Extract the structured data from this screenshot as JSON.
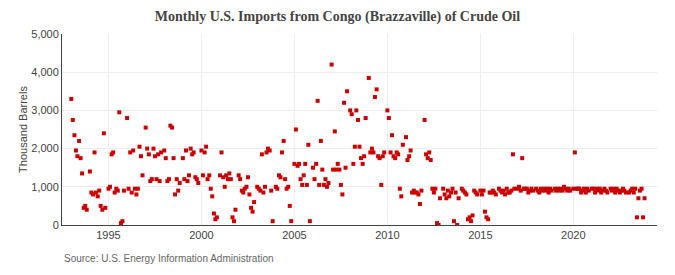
{
  "chart_data": {
    "type": "scatter",
    "title": "Monthly U.S. Imports from Congo (Brazzaville) of Crude Oil",
    "ylabel": "Thousand Barrels",
    "annotations": [
      "Source: U.S. Energy Information Administration"
    ],
    "color": "#cc0000",
    "marker": "square",
    "grid": true,
    "xlim": [
      1992.5,
      2024.5
    ],
    "xticks": [
      1995,
      2000,
      2005,
      2010,
      2015,
      2020
    ],
    "ylim": [
      0,
      5000
    ],
    "yticks": [
      0,
      {
        "value": 1000,
        "label": "1,000"
      },
      {
        "value": 2000,
        "label": "2,000"
      },
      {
        "value": 3000,
        "label": "3,000"
      },
      {
        "value": 4000,
        "label": "4,000"
      },
      {
        "value": 5000,
        "label": "5,000"
      }
    ],
    "x": [
      1993.0,
      1993.08,
      1993.17,
      1993.25,
      1993.33,
      1993.42,
      1993.5,
      1993.58,
      1993.67,
      1993.75,
      1993.83,
      1994.0,
      1994.08,
      1994.17,
      1994.25,
      1994.33,
      1994.42,
      1994.5,
      1994.58,
      1994.67,
      1994.75,
      1994.83,
      1995.0,
      1995.08,
      1995.17,
      1995.25,
      1995.33,
      1995.42,
      1995.5,
      1995.58,
      1995.67,
      1995.75,
      1995.83,
      1996.0,
      1996.08,
      1996.17,
      1996.25,
      1996.33,
      1996.42,
      1996.5,
      1996.58,
      1996.67,
      1996.75,
      1996.83,
      1997.0,
      1997.08,
      1997.17,
      1997.25,
      1997.33,
      1997.42,
      1997.5,
      1997.58,
      1997.67,
      1997.75,
      1997.83,
      1998.0,
      1998.08,
      1998.17,
      1998.25,
      1998.33,
      1998.42,
      1998.5,
      1998.58,
      1998.67,
      1998.75,
      1998.83,
      1999.0,
      1999.08,
      1999.17,
      1999.25,
      1999.33,
      1999.42,
      1999.5,
      1999.58,
      1999.67,
      1999.75,
      1999.83,
      2000.0,
      2000.08,
      2000.17,
      2000.25,
      2000.33,
      2000.42,
      2000.5,
      2000.58,
      2000.67,
      2000.75,
      2000.83,
      2001.0,
      2001.08,
      2001.17,
      2001.25,
      2001.33,
      2001.42,
      2001.5,
      2001.58,
      2001.67,
      2001.75,
      2001.83,
      2002.0,
      2002.08,
      2002.17,
      2002.25,
      2002.33,
      2002.42,
      2002.5,
      2002.58,
      2002.67,
      2002.75,
      2002.83,
      2003.0,
      2003.08,
      2003.17,
      2003.25,
      2003.33,
      2003.42,
      2003.5,
      2003.58,
      2003.67,
      2003.75,
      2003.83,
      2004.0,
      2004.08,
      2004.17,
      2004.25,
      2004.33,
      2004.42,
      2004.5,
      2004.58,
      2004.67,
      2004.75,
      2004.83,
      2005.0,
      2005.08,
      2005.17,
      2005.25,
      2005.33,
      2005.42,
      2005.5,
      2005.58,
      2005.67,
      2005.75,
      2005.83,
      2006.0,
      2006.08,
      2006.17,
      2006.25,
      2006.33,
      2006.42,
      2006.5,
      2006.58,
      2006.67,
      2006.75,
      2006.83,
      2007.0,
      2007.08,
      2007.17,
      2007.25,
      2007.33,
      2007.42,
      2007.5,
      2007.58,
      2007.67,
      2007.75,
      2007.83,
      2008.0,
      2008.08,
      2008.17,
      2008.25,
      2008.33,
      2008.42,
      2008.5,
      2008.58,
      2008.67,
      2008.75,
      2008.83,
      2009.0,
      2009.08,
      2009.17,
      2009.25,
      2009.33,
      2009.42,
      2009.5,
      2009.58,
      2009.67,
      2009.75,
      2009.83,
      2010.0,
      2010.08,
      2010.17,
      2010.25,
      2010.33,
      2010.42,
      2010.5,
      2010.58,
      2010.67,
      2010.75,
      2010.83,
      2011.0,
      2011.08,
      2011.17,
      2011.25,
      2011.33,
      2011.42,
      2011.5,
      2011.58,
      2011.67,
      2011.75,
      2011.83,
      2012.0,
      2012.08,
      2012.17,
      2012.25,
      2012.33,
      2012.42,
      2012.5,
      2012.58,
      2012.67,
      2012.75,
      2012.83,
      2013.0,
      2013.08,
      2013.17,
      2013.25,
      2013.33,
      2013.42,
      2013.5,
      2013.58,
      2013.67,
      2013.75,
      2013.83,
      2014.0,
      2014.08,
      2014.17,
      2014.25,
      2014.33,
      2014.42,
      2014.5,
      2014.58,
      2014.67,
      2014.75,
      2014.83,
      2015.0,
      2015.08,
      2015.17,
      2015.25,
      2015.33,
      2015.42,
      2015.5,
      2015.58,
      2015.67,
      2015.75,
      2015.83,
      2016.0,
      2016.08,
      2016.17,
      2016.25,
      2016.33,
      2016.42,
      2016.5,
      2016.58,
      2016.67,
      2016.75,
      2016.83,
      2017.0,
      2017.08,
      2017.17,
      2017.25,
      2017.33,
      2017.42,
      2017.5,
      2017.58,
      2017.67,
      2017.75,
      2017.83,
      2018.0,
      2018.08,
      2018.17,
      2018.25,
      2018.33,
      2018.42,
      2018.5,
      2018.58,
      2018.67,
      2018.75,
      2018.83,
      2019.0,
      2019.08,
      2019.17,
      2019.25,
      2019.33,
      2019.42,
      2019.5,
      2019.58,
      2019.67,
      2019.75,
      2019.83,
      2020.0,
      2020.08,
      2020.17,
      2020.25,
      2020.33,
      2020.42,
      2020.5,
      2020.58,
      2020.67,
      2020.75,
      2020.83,
      2021.0,
      2021.08,
      2021.17,
      2021.25,
      2021.33,
      2021.42,
      2021.5,
      2021.58,
      2021.67,
      2021.75,
      2021.83,
      2022.0,
      2022.08,
      2022.17,
      2022.25,
      2022.33,
      2022.42,
      2022.5,
      2022.58,
      2022.67,
      2022.75,
      2022.83,
      2023.0,
      2023.08,
      2023.17,
      2023.25,
      2023.33,
      2023.42,
      2023.5,
      2023.58,
      2023.67,
      2023.75,
      2023.83
    ],
    "values": [
      3300,
      2750,
      2350,
      1950,
      1800,
      2200,
      1750,
      1350,
      450,
      500,
      400,
      1400,
      850,
      800,
      1900,
      850,
      750,
      900,
      500,
      400,
      2400,
      450,
      950,
      1000,
      1850,
      1900,
      850,
      950,
      900,
      2950,
      50,
      100,
      900,
      2800,
      950,
      1900,
      850,
      1950,
      950,
      800,
      950,
      2050,
      1800,
      1300,
      2550,
      2000,
      1850,
      1150,
      1200,
      2000,
      1800,
      1200,
      1850,
      1150,
      1900,
      1950,
      1750,
      1150,
      1200,
      2600,
      2550,
      1750,
      800,
      1200,
      900,
      1100,
      1750,
      1200,
      1950,
      1150,
      1300,
      2000,
      1850,
      1900,
      1250,
      1200,
      1100,
      1950,
      1300,
      1900,
      2050,
      1200,
      1300,
      950,
      750,
      300,
      150,
      200,
      1300,
      1900,
      1250,
      1000,
      1300,
      1200,
      1350,
      1200,
      200,
      100,
      400,
      1300,
      1200,
      900,
      850,
      950,
      1000,
      1250,
      800,
      450,
      350,
      600,
      1000,
      950,
      900,
      1850,
      850,
      1000,
      1900,
      2000,
      1950,
      900,
      100,
      1000,
      950,
      1300,
      1250,
      1900,
      2200,
      1200,
      950,
      1000,
      500,
      100,
      1600,
      2500,
      1550,
      1600,
      1200,
      1050,
      1300,
      1600,
      1050,
      2100,
      100,
      1500,
      1200,
      1600,
      3250,
      1050,
      2200,
      1450,
      1050,
      1200,
      1000,
      1100,
      4200,
      1450,
      2450,
      1450,
      1600,
      1450,
      1050,
      800,
      3200,
      1500,
      3500,
      3000,
      2900,
      1600,
      2050,
      3000,
      2750,
      2050,
      1750,
      1600,
      1800,
      2800,
      3850,
      1900,
      2000,
      1900,
      3350,
      3550,
      1800,
      1750,
      1050,
      1800,
      1900,
      3000,
      2800,
      1900,
      2350,
      1800,
      1750,
      1900,
      1850,
      950,
      750,
      2100,
      2300,
      1700,
      1800,
      1950,
      850,
      900,
      850,
      850,
      800,
      550,
      900,
      2750,
      1850,
      1750,
      1900,
      1700,
      950,
      850,
      950,
      50,
      0,
      700,
      950,
      800,
      700,
      900,
      750,
      850,
      950,
      100,
      850,
      0,
      700,
      950,
      900,
      850,
      800,
      150,
      200,
      100,
      250,
      900,
      850,
      800,
      900,
      800,
      900,
      350,
      200,
      150,
      850,
      850,
      900,
      850,
      800,
      950,
      900,
      850,
      900,
      800,
      950,
      850,
      850,
      900,
      1850,
      950,
      950,
      1000,
      900,
      1750,
      950,
      950,
      950,
      850,
      900,
      950,
      900,
      950,
      900,
      850,
      950,
      900,
      950,
      900,
      950,
      850,
      950,
      900,
      950,
      900,
      950,
      900,
      950,
      900,
      1000,
      950,
      900,
      950,
      900,
      950,
      1900,
      950,
      950,
      950,
      850,
      900,
      950,
      850,
      950,
      900,
      950,
      950,
      850,
      950,
      900,
      950,
      850,
      900,
      950,
      900,
      850,
      950,
      900,
      950,
      850,
      950,
      900,
      850,
      900,
      950,
      900,
      850,
      850,
      900,
      950,
      850,
      950,
      200,
      700,
      900,
      950,
      200,
      700
    ]
  }
}
